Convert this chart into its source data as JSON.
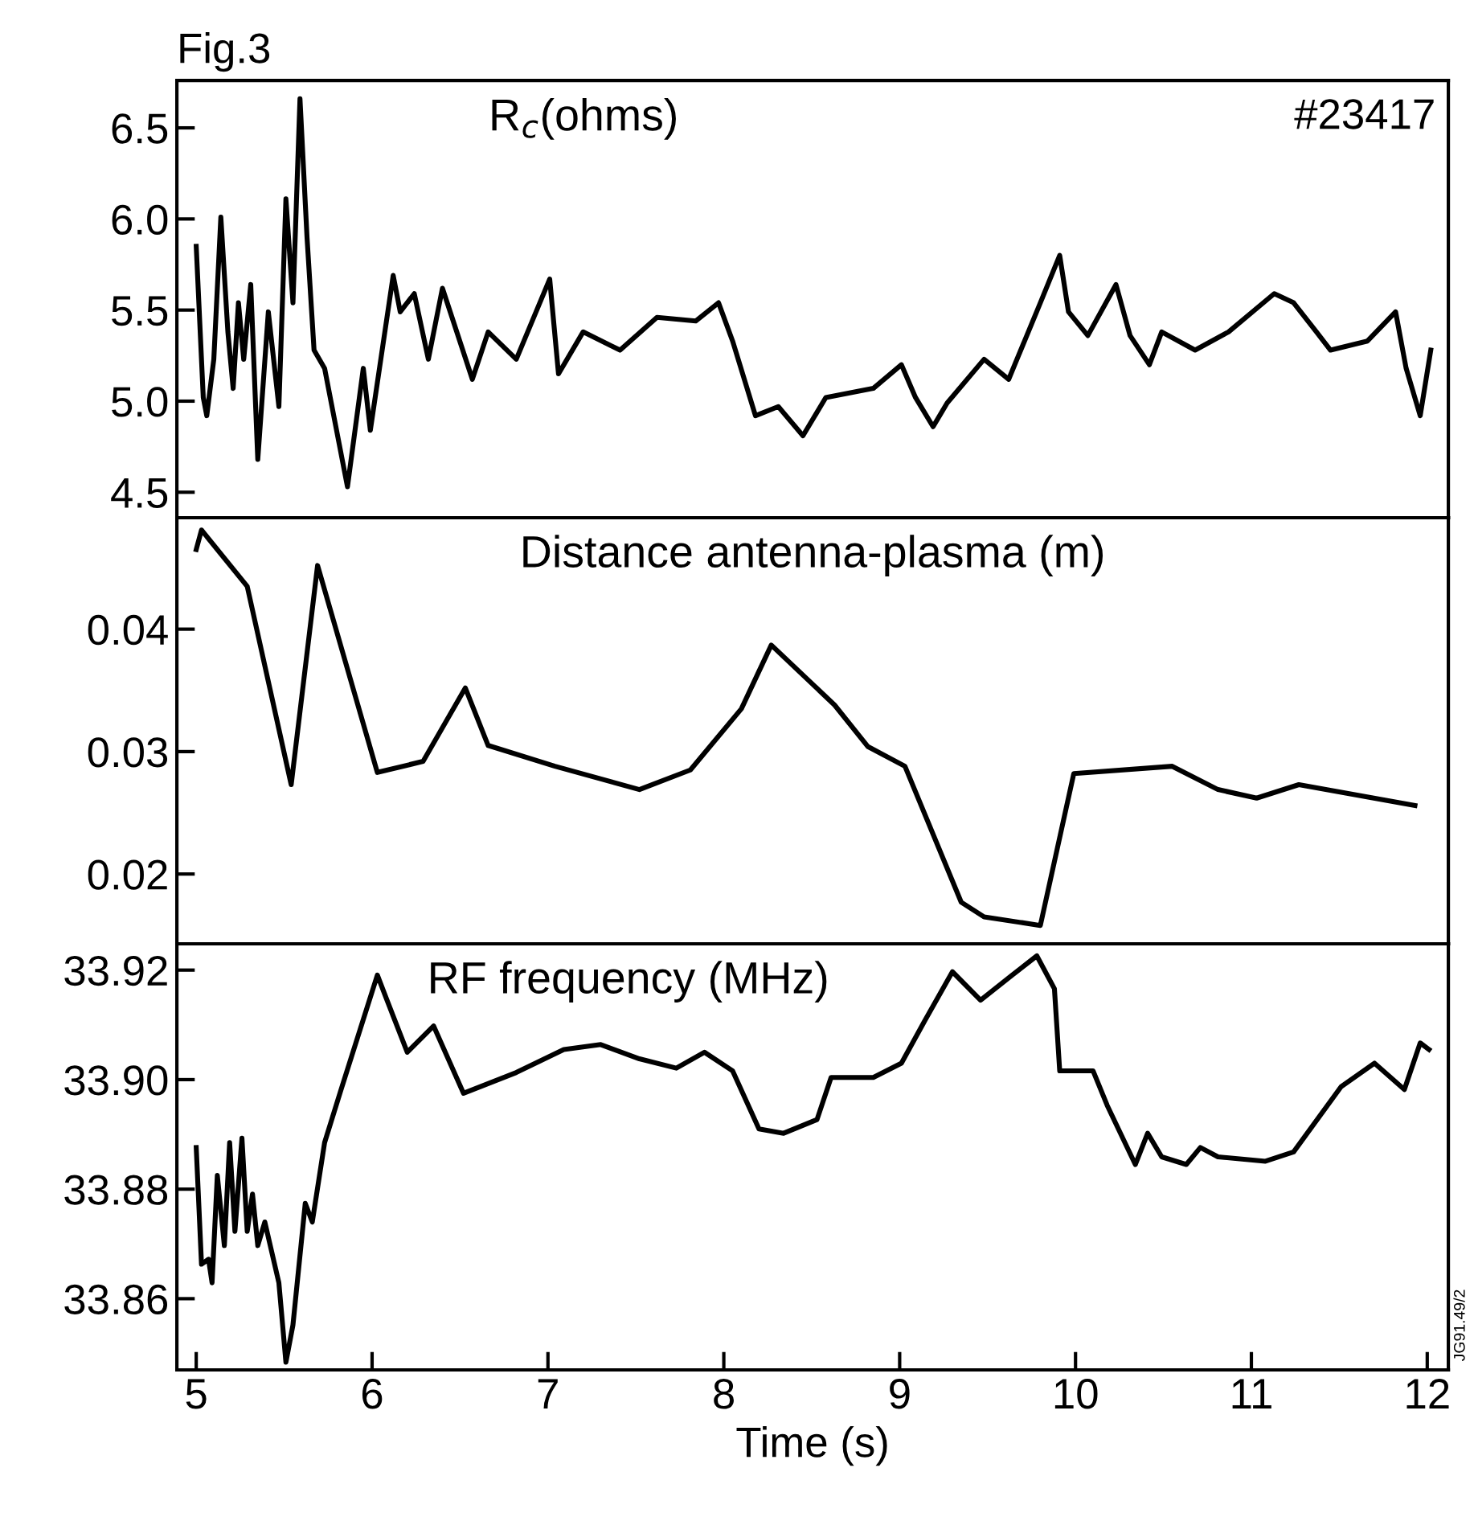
{
  "chart_data": [
    {
      "type": "line",
      "title": "R$_{c}$(ohms)",
      "annotations": [
        "Fig.3",
        "#23417"
      ],
      "xlim": [
        4.89,
        12.12
      ],
      "xticks": [
        5,
        6,
        7,
        8,
        9,
        10,
        11,
        12
      ],
      "ylim": [
        4.36,
        6.76
      ],
      "yticks": [
        {
          "value": 4.5,
          "label": "4.5"
        },
        {
          "value": 5,
          "label": "5.0"
        },
        {
          "value": 5.5,
          "label": "5.5"
        },
        {
          "value": 6,
          "label": "6.0"
        },
        {
          "value": 6.5,
          "label": "6.5"
        }
      ],
      "tick_labels": "y",
      "grid": false,
      "line_style": "solid",
      "series": [
        {
          "color": "#000000",
          "x": [
            5.0,
            5.04,
            5.06,
            5.1,
            5.14,
            5.18,
            5.21,
            5.24,
            5.27,
            5.31,
            5.35,
            5.41,
            5.47,
            5.51,
            5.55,
            5.59,
            5.63,
            5.67,
            5.73,
            5.86,
            5.95,
            5.99,
            6.12,
            6.16,
            6.24,
            6.32,
            6.4,
            6.57,
            6.66,
            6.82,
            7.01,
            7.06,
            7.2,
            7.41,
            7.62,
            7.84,
            7.97,
            8.05,
            8.18,
            8.31,
            8.45,
            8.58,
            8.85,
            9.01,
            9.09,
            9.19,
            9.27,
            9.48,
            9.62,
            9.8,
            9.91,
            9.96,
            10.07,
            10.23,
            10.31,
            10.42,
            10.49,
            10.68,
            10.87,
            11.13,
            11.24,
            11.37,
            11.45,
            11.66,
            11.82,
            11.88,
            11.96,
            12.02
          ],
          "values": [
            5.85,
            5.02,
            4.92,
            5.23,
            6.01,
            5.38,
            5.07,
            5.54,
            5.23,
            5.64,
            4.68,
            5.49,
            4.97,
            6.11,
            5.54,
            6.66,
            5.9,
            5.28,
            5.18,
            4.53,
            5.18,
            4.84,
            5.69,
            5.49,
            5.59,
            5.23,
            5.62,
            5.12,
            5.38,
            5.23,
            5.67,
            5.15,
            5.38,
            5.28,
            5.46,
            5.44,
            5.54,
            5.33,
            4.92,
            4.97,
            4.81,
            5.02,
            5.07,
            5.2,
            5.02,
            4.86,
            4.99,
            5.23,
            5.12,
            5.54,
            5.8,
            5.49,
            5.36,
            5.64,
            5.36,
            5.2,
            5.38,
            5.28,
            5.38,
            5.59,
            5.54,
            5.38,
            5.28,
            5.33,
            5.49,
            5.18,
            4.92,
            5.28
          ]
        }
      ]
    },
    {
      "type": "line",
      "title": "Distance antenna-plasma (m)",
      "xlim": [
        4.89,
        12.12
      ],
      "xticks": [
        5,
        6,
        7,
        8,
        9,
        10,
        11,
        12
      ],
      "ylim": [
        0.0143,
        0.0491
      ],
      "yticks": [
        0.02,
        0.03,
        0.04
      ],
      "tick_labels": "y",
      "grid": false,
      "line_style": "solid",
      "series": [
        {
          "color": "#000000",
          "x": [
            5.0,
            5.03,
            5.29,
            5.54,
            5.69,
            6.03,
            6.29,
            6.53,
            6.66,
            7.04,
            7.52,
            7.81,
            8.1,
            8.27,
            8.63,
            8.82,
            9.03,
            9.35,
            9.48,
            9.8,
            9.99,
            10.55,
            10.81,
            11.03,
            11.27,
            11.93
          ],
          "values": [
            0.0465,
            0.0481,
            0.0435,
            0.0273,
            0.0452,
            0.0283,
            0.0292,
            0.0352,
            0.0305,
            0.0288,
            0.0269,
            0.0285,
            0.0335,
            0.0387,
            0.0338,
            0.0304,
            0.0288,
            0.0177,
            0.0165,
            0.0158,
            0.0282,
            0.0288,
            0.0269,
            0.0262,
            0.0273,
            0.0256
          ]
        }
      ]
    },
    {
      "type": "line",
      "title": "RF frequency (MHz)",
      "xlabel": "Time (s)",
      "annotations": [
        "JG91.49/2"
      ],
      "xlim": [
        4.89,
        12.12
      ],
      "xticks": [
        5,
        6,
        7,
        8,
        9,
        10,
        11,
        12
      ],
      "ylim": [
        33.847,
        33.9248
      ],
      "yticks": [
        {
          "value": 33.86,
          "label": "33.86"
        },
        {
          "value": 33.88,
          "label": "33.88"
        },
        {
          "value": 33.9,
          "label": "33.90"
        },
        {
          "value": 33.92,
          "label": "33.92"
        }
      ],
      "grid": false,
      "line_style": "solid",
      "series": [
        {
          "color": "#000000",
          "x": [
            5.0,
            5.03,
            5.07,
            5.09,
            5.12,
            5.16,
            5.19,
            5.22,
            5.26,
            5.29,
            5.32,
            5.35,
            5.39,
            5.47,
            5.51,
            5.55,
            5.62,
            5.66,
            5.73,
            5.82,
            6.03,
            6.08,
            6.2,
            6.35,
            6.52,
            6.82,
            7.09,
            7.3,
            7.52,
            7.73,
            7.89,
            8.05,
            8.2,
            8.34,
            8.53,
            8.61,
            8.85,
            9.01,
            9.14,
            9.3,
            9.46,
            9.64,
            9.78,
            9.88,
            9.91,
            10.1,
            10.18,
            10.34,
            10.41,
            10.49,
            10.63,
            10.71,
            10.81,
            11.08,
            11.24,
            11.51,
            11.7,
            11.87,
            11.96,
            12.01
          ],
          "values": [
            33.8876,
            33.8663,
            33.8672,
            33.8629,
            33.8825,
            33.8697,
            33.8885,
            33.8723,
            33.8893,
            33.8723,
            33.8791,
            33.8697,
            33.874,
            33.8629,
            33.8484,
            33.8552,
            33.8774,
            33.874,
            33.8885,
            33.8978,
            33.9191,
            33.9149,
            33.905,
            33.9098,
            33.8975,
            33.9013,
            33.9055,
            33.9064,
            33.9038,
            33.9021,
            33.905,
            33.9016,
            33.891,
            33.8902,
            33.8927,
            33.9004,
            33.9004,
            33.903,
            33.9106,
            33.9197,
            33.9145,
            33.9191,
            33.9226,
            33.9166,
            33.9016,
            33.9016,
            33.8953,
            33.8845,
            33.8902,
            33.8859,
            33.8845,
            33.8876,
            33.8859,
            33.8851,
            33.8868,
            33.8987,
            33.903,
            33.8982,
            33.9067,
            33.9055
          ]
        }
      ]
    }
  ]
}
